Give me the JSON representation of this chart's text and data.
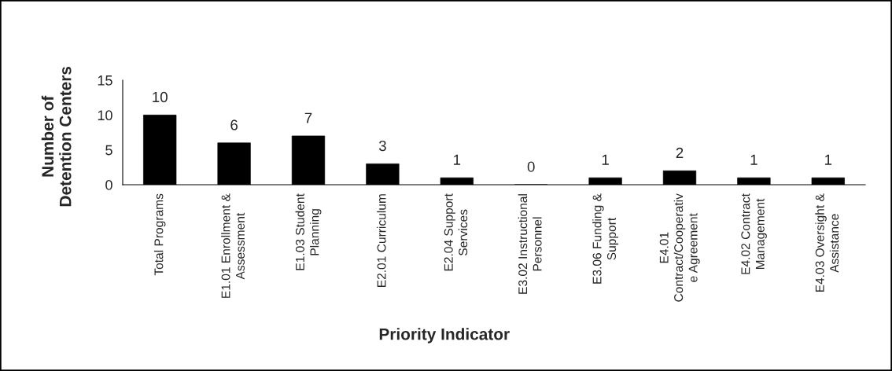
{
  "chart_data": {
    "type": "bar",
    "categories": [
      "Total Programs",
      "E1.01 Enrollment &\nAssessment",
      "E1.03 Student\nPlanning",
      "E2.01 Curriculum",
      "E2.04 Support\nServices",
      "E3.02 Instructional\nPersonnel",
      "E3.06 Funding &\nSupport",
      "E4.01\nContract/Cooperativ\ne Agreement",
      "E4.02 Contract\nManagement",
      "E4.03 Oversight &\nAssistance"
    ],
    "values": [
      10,
      6,
      7,
      3,
      1,
      0,
      1,
      2,
      1,
      1
    ],
    "color": "#000000",
    "ylim": [
      0,
      15
    ],
    "yticks": [
      0,
      5,
      10,
      15
    ],
    "ylabel": "Number of\nDetention Centers",
    "xlabel": "Priority Indicator",
    "data_labels": true,
    "grid": false
  }
}
